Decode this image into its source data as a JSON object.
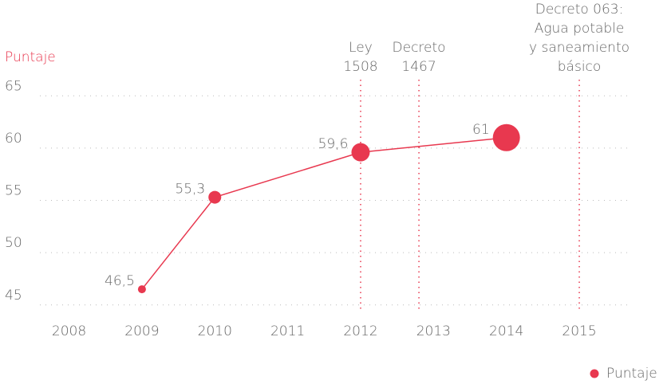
{
  "chart_data": {
    "type": "line",
    "y_label": "Puntaje",
    "x": [
      2009,
      2010,
      2012,
      2014
    ],
    "series": [
      {
        "name": "Puntaje",
        "color": "#e8384f",
        "values": [
          46.5,
          55.3,
          59.6,
          61
        ],
        "value_labels": [
          "46,5",
          "55,3",
          "59,6",
          "61"
        ]
      }
    ],
    "xlim": [
      2007.6,
      2015.7
    ],
    "xticks": [
      2008,
      2009,
      2010,
      2011,
      2012,
      2013,
      2014,
      2015
    ],
    "ylim": [
      44.6,
      65.4
    ],
    "yticks": [
      45,
      50,
      55,
      60,
      65
    ],
    "grid": true,
    "legend": "lower right",
    "annotations": [
      {
        "x": 2012,
        "lines": [
          "Ley",
          "1508"
        ]
      },
      {
        "x": 2012.8,
        "lines": [
          "Decreto",
          "1467"
        ]
      },
      {
        "x": 2015,
        "lines": [
          "Decreto 063:",
          "Agua potable",
          "y saneamiento",
          "básico"
        ]
      }
    ]
  }
}
